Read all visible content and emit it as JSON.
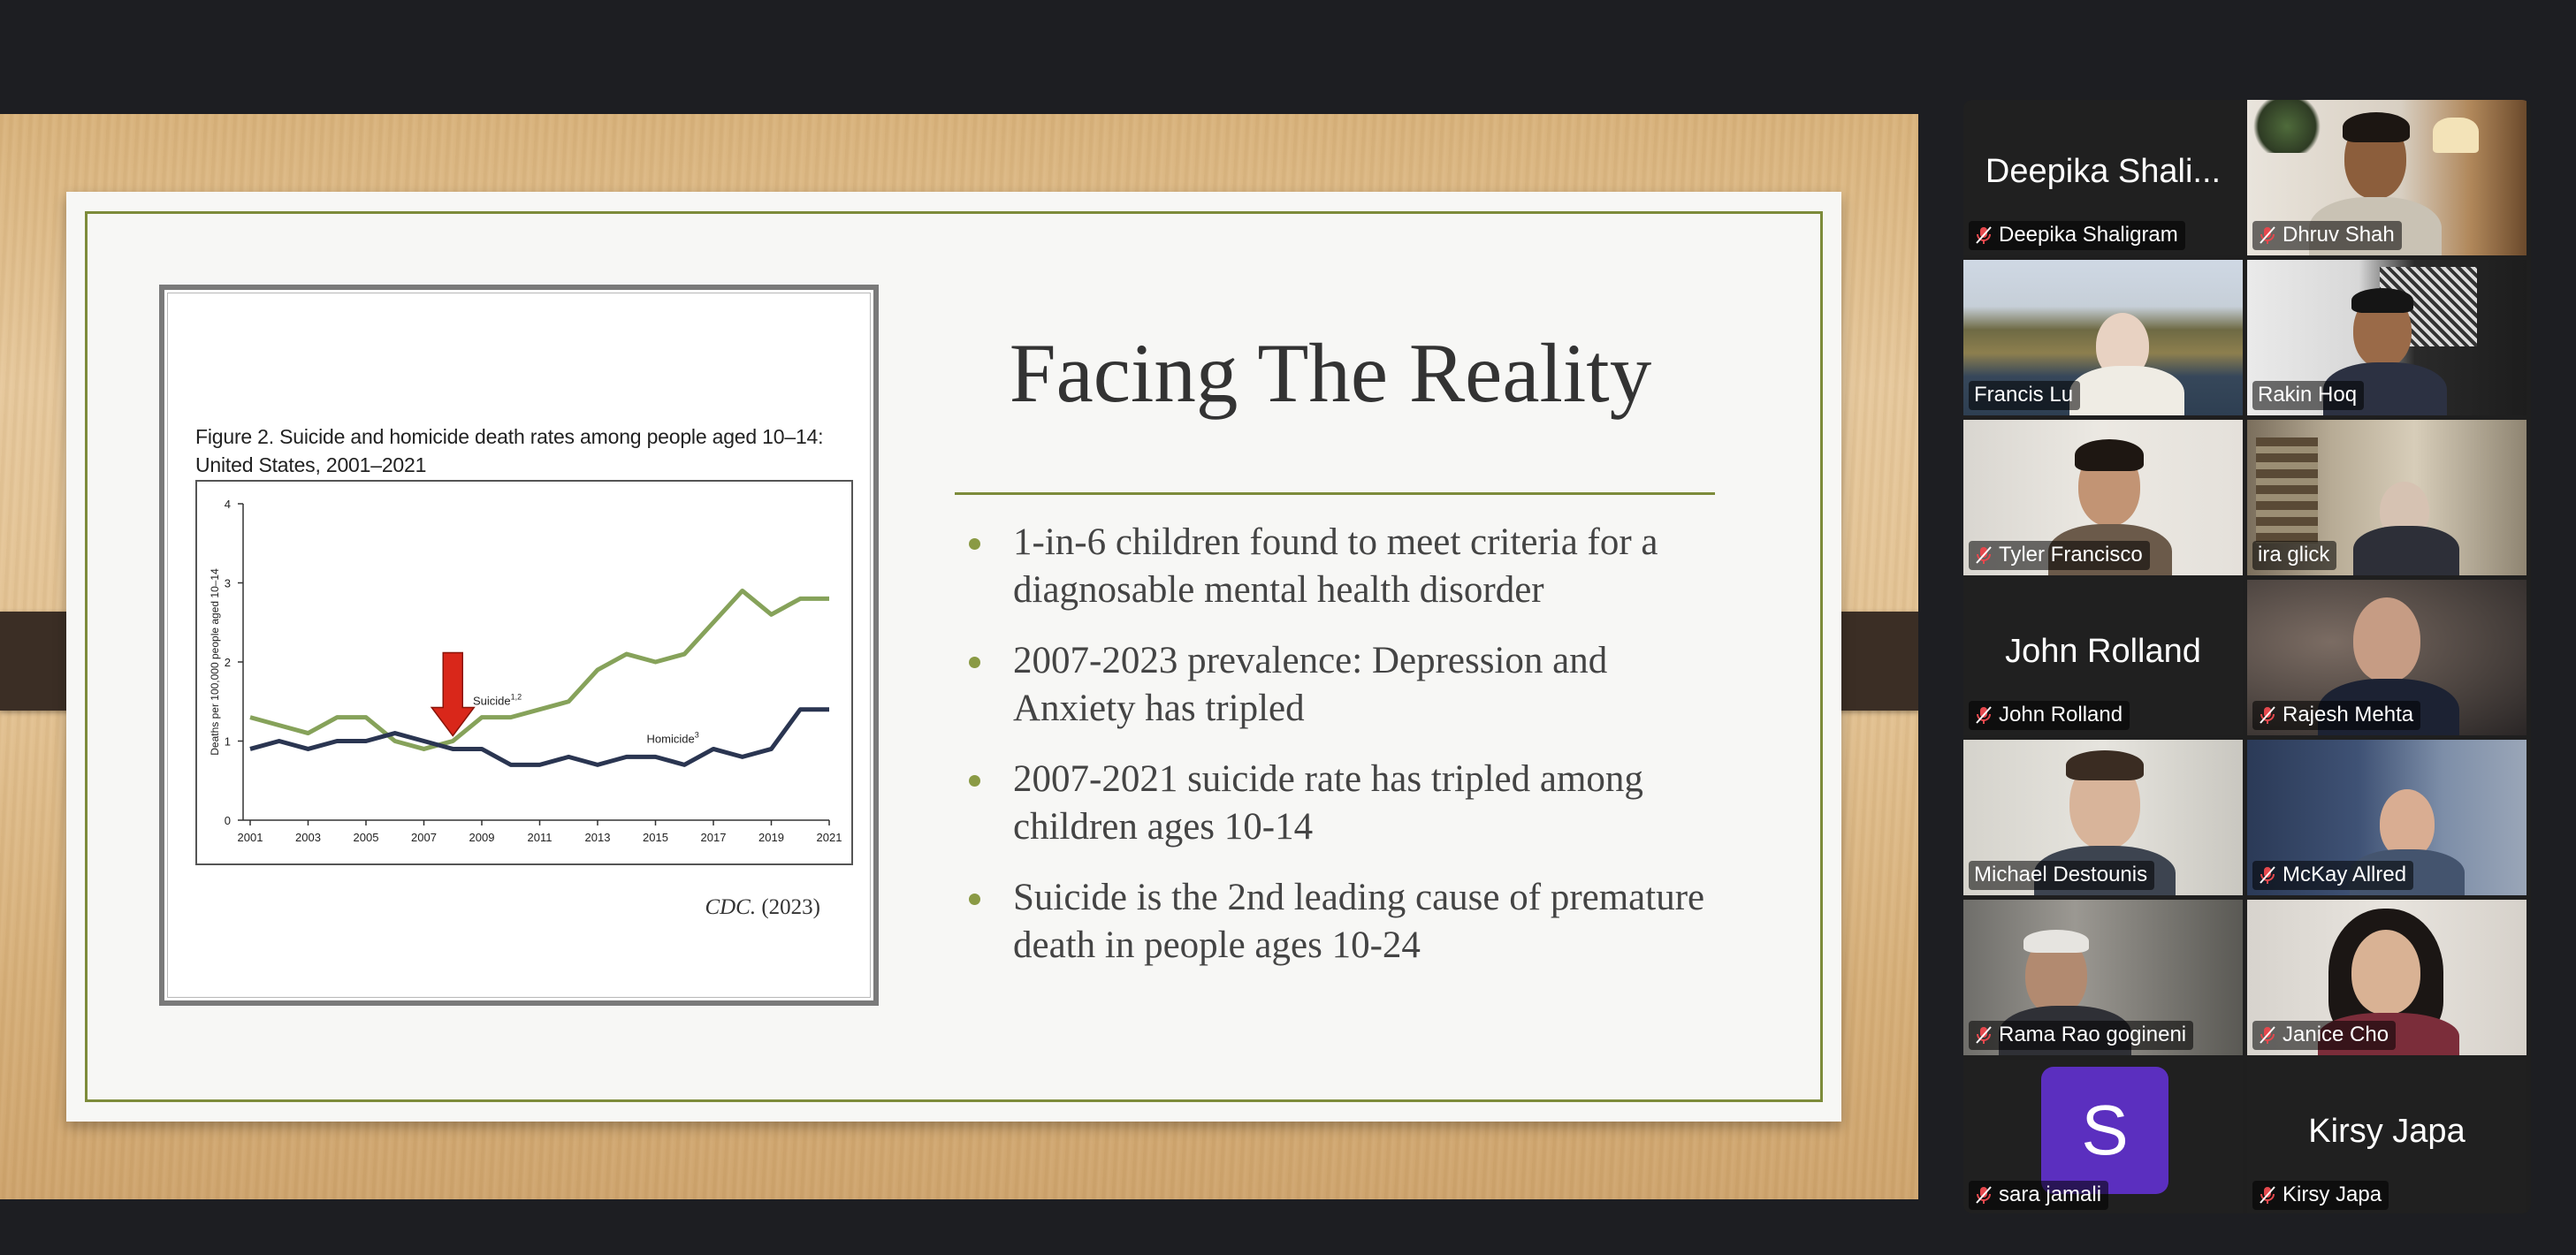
{
  "slide": {
    "title": "Facing The Reality",
    "bullets": [
      "1-in-6 children found to meet criteria for a diagnosable mental health disorder",
      "2007-2023 prevalence:  Depression and Anxiety has tripled",
      "2007-2021 suicide rate has tripled among children ages 10-14",
      "Suicide is the 2nd leading cause of premature death in people ages 10-24"
    ],
    "figure_caption": "Figure 2. Suicide and homicide death rates among people aged 10–14: United States, 2001–2021",
    "figure_source_italic": "CDC.",
    "figure_source_year": "(2023)"
  },
  "chart_data": {
    "type": "line",
    "title": "Figure 2. Suicide and homicide death rates among people aged 10–14: United States, 2001–2021",
    "ylabel": "Deaths per 100,000 people aged 10–14",
    "xlabel": "",
    "ylim": [
      0,
      4
    ],
    "yticks": [
      "0",
      "1",
      "2",
      "3",
      "4"
    ],
    "xticks": [
      "2001",
      "2003",
      "2005",
      "2007",
      "2009",
      "2011",
      "2013",
      "2015",
      "2017",
      "2019",
      "2021"
    ],
    "x": [
      2001,
      2002,
      2003,
      2004,
      2005,
      2006,
      2007,
      2008,
      2009,
      2010,
      2011,
      2012,
      2013,
      2014,
      2015,
      2016,
      2017,
      2018,
      2019,
      2020,
      2021
    ],
    "series": [
      {
        "name": "Suicide",
        "label_superscript": "1,2",
        "color": "#86a25a",
        "values": [
          1.3,
          1.2,
          1.1,
          1.3,
          1.3,
          1.0,
          0.9,
          1.0,
          1.3,
          1.3,
          1.4,
          1.5,
          1.9,
          2.1,
          2.0,
          2.1,
          2.5,
          2.9,
          2.6,
          2.8,
          2.8
        ]
      },
      {
        "name": "Homicide",
        "label_superscript": "3",
        "color": "#2a3551",
        "values": [
          0.9,
          1.0,
          0.9,
          1.0,
          1.0,
          1.1,
          1.0,
          0.9,
          0.9,
          0.7,
          0.7,
          0.8,
          0.7,
          0.8,
          0.8,
          0.7,
          0.9,
          0.8,
          0.9,
          1.4,
          1.4
        ]
      }
    ],
    "annotation": {
      "type": "arrow",
      "color": "#d9271a",
      "x": 2008,
      "points": "down"
    },
    "grid": false
  },
  "participants": [
    {
      "name": "Deepika Shaligram",
      "display": "Deepika Shali...",
      "video": false,
      "muted": true
    },
    {
      "name": "Dhruv Shah",
      "video": true,
      "muted": true
    },
    {
      "name": "Francis Lu",
      "video": true,
      "muted": false
    },
    {
      "name": "Rakin Hoq",
      "video": true,
      "muted": false,
      "active": true
    },
    {
      "name": "Tyler Francisco",
      "video": true,
      "muted": true
    },
    {
      "name": "ira glick",
      "video": true,
      "muted": false
    },
    {
      "name": "John Rolland",
      "display": "John Rolland",
      "video": false,
      "muted": true
    },
    {
      "name": "Rajesh Mehta",
      "video": true,
      "muted": true
    },
    {
      "name": "Michael Destounis",
      "video": true,
      "muted": false
    },
    {
      "name": "McKay Allred",
      "video": true,
      "muted": true
    },
    {
      "name": "Rama Rao gogineni",
      "video": true,
      "muted": true
    },
    {
      "name": "Janice Cho",
      "video": true,
      "muted": true
    },
    {
      "name": "sara jamali",
      "avatar_letter": "S",
      "video": false,
      "muted": true
    },
    {
      "name": "Kirsy Japa",
      "display": "Kirsy Japa",
      "video": false,
      "muted": true
    }
  ],
  "colors": {
    "accent_green": "#7d8b3a",
    "active_speaker": "#31c444",
    "muted_icon": "#e5484d",
    "avatar_purple": "#5b2fbf"
  }
}
